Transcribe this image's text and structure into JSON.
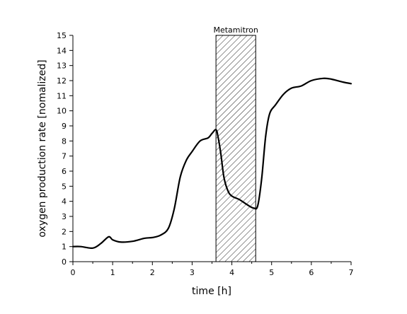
{
  "chart_data": {
    "type": "line",
    "title": "",
    "xlabel": "time [h]",
    "ylabel": "oxygen production rate [nomalized]",
    "xlim": [
      0,
      7
    ],
    "ylim": [
      0,
      15
    ],
    "xticks": [
      0,
      1,
      2,
      3,
      4,
      5,
      6,
      7
    ],
    "yticks": [
      0,
      1,
      2,
      3,
      4,
      5,
      6,
      7,
      8,
      9,
      10,
      11,
      12,
      13,
      14,
      15
    ],
    "grid": false,
    "legend": "none",
    "line_color": "#000000",
    "annotations": [
      {
        "type": "shaded-region",
        "label": "Metamitron",
        "x_start": 3.6,
        "x_end": 4.6,
        "pattern": "diagonal-hatch"
      }
    ],
    "series": [
      {
        "x": [
          0,
          0.2,
          0.5,
          0.7,
          0.9,
          1.0,
          1.2,
          1.5,
          1.8,
          2.0,
          2.2,
          2.4,
          2.55,
          2.7,
          2.85,
          3.0,
          3.2,
          3.4,
          3.5,
          3.6,
          3.65,
          3.72,
          3.8,
          3.9,
          4.0,
          4.2,
          4.4,
          4.55,
          4.65,
          4.75,
          4.85,
          4.95,
          5.1,
          5.3,
          5.5,
          5.75,
          6.0,
          6.3,
          6.5,
          6.8,
          7.0
        ],
        "y": [
          1.0,
          1.0,
          0.9,
          1.2,
          1.65,
          1.45,
          1.3,
          1.35,
          1.55,
          1.6,
          1.75,
          2.2,
          3.5,
          5.6,
          6.7,
          7.3,
          8.0,
          8.2,
          8.5,
          8.75,
          8.3,
          7.2,
          5.6,
          4.7,
          4.35,
          4.1,
          3.75,
          3.55,
          3.7,
          5.5,
          8.3,
          9.8,
          10.4,
          11.1,
          11.5,
          11.65,
          12.0,
          12.15,
          12.1,
          11.9,
          11.8
        ]
      }
    ]
  }
}
